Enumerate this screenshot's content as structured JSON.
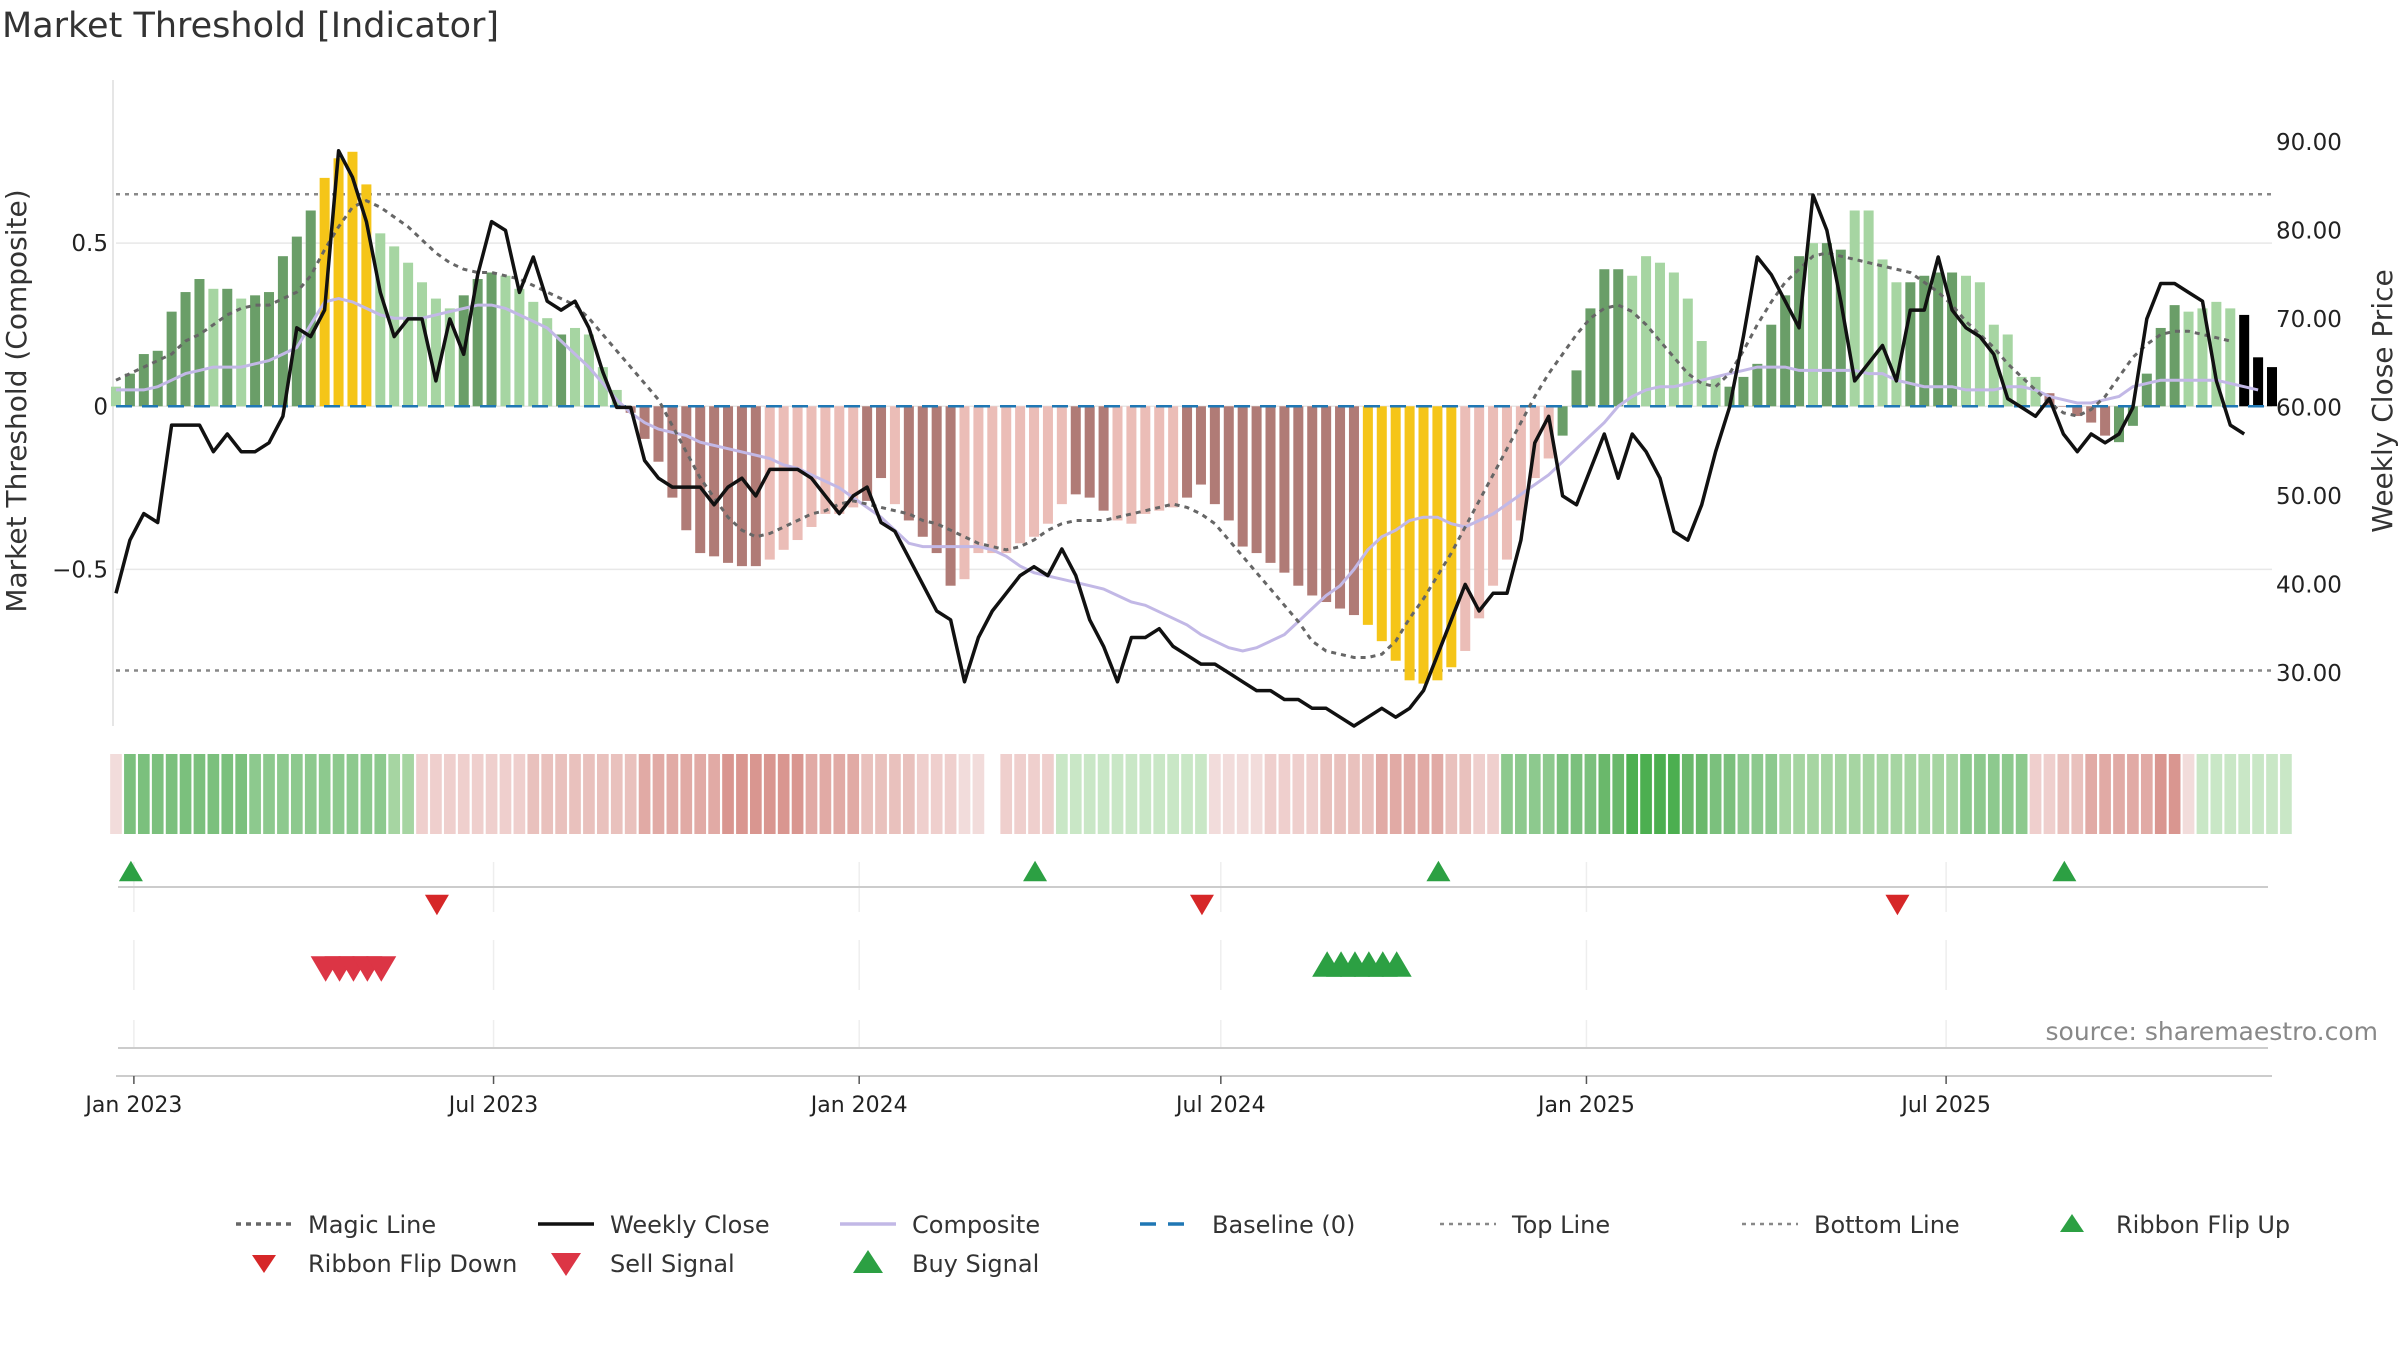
{
  "title": "Market Threshold [Indicator]",
  "source": "source: sharemaestro.com",
  "chart_data": {
    "type": "bar",
    "title": "Market Threshold [Indicator]",
    "start_date": "2022-12-23",
    "week_step_days": 7,
    "left_axis": {
      "label": "Market Threshold (Composite)",
      "ticks": [
        0.5,
        0,
        -0.5
      ],
      "tick_labels": [
        "0.5",
        "0",
        "−0.5"
      ],
      "ylim": [
        -0.98,
        1.0
      ]
    },
    "right_axis": {
      "label": "Weekly Close Price",
      "ticks": [
        30,
        40,
        50,
        60,
        70,
        80,
        90
      ],
      "tick_labels": [
        "30.00",
        "40.00",
        "50.00",
        "60.00",
        "70.00",
        "80.00",
        "90.00"
      ],
      "ylim": [
        24,
        97
      ]
    },
    "x_ticks": [
      {
        "date": "2023-01-01",
        "label": "Jan 2023"
      },
      {
        "date": "2023-07-01",
        "label": "Jul 2023"
      },
      {
        "date": "2024-01-01",
        "label": "Jan 2024"
      },
      {
        "date": "2024-07-01",
        "label": "Jul 2024"
      },
      {
        "date": "2025-01-01",
        "label": "Jan 2025"
      },
      {
        "date": "2025-07-01",
        "label": "Jul 2025"
      }
    ],
    "top_line": 0.65,
    "bottom_line": -0.81,
    "composite_histogram": [
      0.06,
      0.1,
      0.16,
      0.17,
      0.29,
      0.35,
      0.39,
      0.36,
      0.36,
      0.33,
      0.34,
      0.35,
      0.46,
      0.52,
      0.6,
      0.7,
      0.76,
      0.78,
      0.68,
      0.53,
      0.49,
      0.44,
      0.38,
      0.33,
      0.3,
      0.34,
      0.39,
      0.41,
      0.4,
      0.36,
      0.32,
      0.27,
      0.22,
      0.24,
      0.22,
      0.12,
      0.05,
      -0.02,
      -0.1,
      -0.17,
      -0.28,
      -0.38,
      -0.45,
      -0.46,
      -0.48,
      -0.49,
      -0.49,
      -0.47,
      -0.44,
      -0.41,
      -0.37,
      -0.33,
      -0.33,
      -0.31,
      -0.29,
      -0.22,
      -0.3,
      -0.35,
      -0.4,
      -0.45,
      -0.55,
      -0.53,
      -0.45,
      -0.45,
      -0.45,
      -0.42,
      -0.4,
      -0.36,
      -0.3,
      -0.27,
      -0.28,
      -0.32,
      -0.35,
      -0.36,
      -0.33,
      -0.32,
      -0.31,
      -0.28,
      -0.24,
      -0.3,
      -0.35,
      -0.43,
      -0.45,
      -0.48,
      -0.51,
      -0.55,
      -0.58,
      -0.6,
      -0.62,
      -0.64,
      -0.67,
      -0.72,
      -0.78,
      -0.84,
      -0.85,
      -0.84,
      -0.8,
      -0.75,
      -0.65,
      -0.55,
      -0.47,
      -0.35,
      -0.22,
      -0.16,
      -0.09,
      0.11,
      0.3,
      0.42,
      0.42,
      0.4,
      0.46,
      0.44,
      0.41,
      0.33,
      0.2,
      0.09,
      0.06,
      0.09,
      0.13,
      0.25,
      0.34,
      0.46,
      0.5,
      0.5,
      0.48,
      0.6,
      0.6,
      0.45,
      0.38,
      0.38,
      0.4,
      0.41,
      0.41,
      0.4,
      0.38,
      0.25,
      0.22,
      0.09,
      0.09,
      0.04,
      0,
      -0.03,
      -0.05,
      -0.09,
      -0.11,
      -0.06,
      0.1,
      0.24,
      0.31,
      0.29,
      0.3,
      0.32,
      0.3,
      0.28,
      0.15,
      0.12
    ],
    "bar_colors": [
      "#a6d5a2",
      "#6a9e68",
      "#6a9e68",
      "#6a9e68",
      "#6a9e68",
      "#6a9e68",
      "#6a9e68",
      "#a6d5a2",
      "#6a9e68",
      "#a6d5a2",
      "#6a9e68",
      "#6a9e68",
      "#6a9e68",
      "#6a9e68",
      "#6a9e68",
      "#f5c518",
      "#f5c518",
      "#f5c518",
      "#f5c518",
      "#a6d5a2",
      "#a6d5a2",
      "#a6d5a2",
      "#a6d5a2",
      "#a6d5a2",
      "#a6d5a2",
      "#6a9e68",
      "#6a9e68",
      "#6a9e68",
      "#a6d5a2",
      "#a6d5a2",
      "#a6d5a2",
      "#a6d5a2",
      "#6a9e68",
      "#a6d5a2",
      "#a6d5a2",
      "#a6d5a2",
      "#a6d5a2",
      "#b07b76",
      "#b07b76",
      "#b07b76",
      "#b07b76",
      "#b07b76",
      "#b07b76",
      "#b07b76",
      "#b07b76",
      "#b07b76",
      "#b07b76",
      "#ebbdb7",
      "#ebbdb7",
      "#ebbdb7",
      "#ebbdb7",
      "#ebbdb7",
      "#ebbdb7",
      "#ebbdb7",
      "#b07b76",
      "#b07b76",
      "#ebbdb7",
      "#b07b76",
      "#b07b76",
      "#b07b76",
      "#b07b76",
      "#ebbdb7",
      "#ebbdb7",
      "#ebbdb7",
      "#ebbdb7",
      "#ebbdb7",
      "#ebbdb7",
      "#ebbdb7",
      "#ebbdb7",
      "#b07b76",
      "#b07b76",
      "#b07b76",
      "#ebbdb7",
      "#ebbdb7",
      "#ebbdb7",
      "#ebbdb7",
      "#ebbdb7",
      "#b07b76",
      "#b07b76",
      "#b07b76",
      "#b07b76",
      "#b07b76",
      "#b07b76",
      "#b07b76",
      "#b07b76",
      "#b07b76",
      "#b07b76",
      "#b07b76",
      "#b07b76",
      "#b07b76",
      "#f5c518",
      "#f5c518",
      "#f5c518",
      "#f5c518",
      "#f5c518",
      "#f5c518",
      "#f5c518",
      "#ebbdb7",
      "#ebbdb7",
      "#ebbdb7",
      "#ebbdb7",
      "#ebbdb7",
      "#ebbdb7",
      "#ebbdb7",
      "#6a9e68",
      "#6a9e68",
      "#6a9e68",
      "#6a9e68",
      "#6a9e68",
      "#a6d5a2",
      "#a6d5a2",
      "#a6d5a2",
      "#a6d5a2",
      "#a6d5a2",
      "#a6d5a2",
      "#a6d5a2",
      "#6a9e68",
      "#6a9e68",
      "#6a9e68",
      "#6a9e68",
      "#6a9e68",
      "#6a9e68",
      "#a6d5a2",
      "#6a9e68",
      "#6a9e68",
      "#a6d5a2",
      "#a6d5a2",
      "#a6d5a2",
      "#a6d5a2",
      "#6a9e68",
      "#6a9e68",
      "#6a9e68",
      "#6a9e68",
      "#a6d5a2",
      "#a6d5a2",
      "#a6d5a2",
      "#a6d5a2",
      "#a6d5a2",
      "#a6d5a2",
      "#b07b76",
      "#b07b76",
      "#b07b76",
      "#b07b76",
      "#b07b76",
      "#6a9e68",
      "#6a9e68",
      "#6a9e68",
      "#6a9e68",
      "#6a9e68",
      "#a6d5a2",
      "#a6d5a2",
      "#a6d5a2",
      "#a6d5a2"
    ],
    "weekly_close": [
      39,
      45,
      48,
      47,
      58,
      58,
      58,
      55,
      57,
      55,
      55,
      56,
      59,
      69,
      68,
      71,
      89,
      86,
      81,
      73,
      68,
      70,
      70,
      63,
      70,
      66,
      75,
      81,
      80,
      73,
      77,
      72,
      71,
      72,
      69,
      64,
      60,
      60,
      54,
      52,
      51,
      51,
      51,
      49,
      51,
      52,
      50,
      53,
      53,
      53,
      52,
      50,
      48,
      50,
      51,
      47,
      46,
      43,
      40,
      37,
      36,
      29,
      34,
      37,
      39,
      41,
      42,
      41,
      44,
      41,
      36,
      33,
      29,
      34,
      34,
      35,
      33,
      32,
      31,
      31,
      30,
      29,
      28,
      28,
      27,
      27,
      26,
      26,
      25,
      24,
      25,
      26,
      25,
      26,
      28,
      32,
      36,
      40,
      37,
      39,
      39,
      45,
      56,
      59,
      50,
      49,
      53,
      57,
      52,
      57,
      55,
      52,
      46,
      45,
      49,
      55,
      60,
      68,
      77,
      75,
      72,
      69,
      84,
      80,
      72,
      63,
      65,
      67,
      63,
      71,
      71,
      77,
      71,
      69,
      68,
      66,
      61,
      60,
      59,
      61,
      57,
      55,
      57,
      56,
      57,
      60,
      70,
      74,
      74,
      73,
      72,
      63,
      58,
      57
    ],
    "magic_line": [
      0.08,
      0.1,
      0.12,
      0.14,
      0.16,
      0.2,
      0.22,
      0.25,
      0.28,
      0.3,
      0.31,
      0.31,
      0.33,
      0.35,
      0.4,
      0.48,
      0.55,
      0.61,
      0.63,
      0.61,
      0.58,
      0.55,
      0.51,
      0.47,
      0.44,
      0.42,
      0.41,
      0.41,
      0.4,
      0.39,
      0.37,
      0.35,
      0.33,
      0.31,
      0.27,
      0.22,
      0.17,
      0.12,
      0.07,
      0.02,
      -0.06,
      -0.14,
      -0.22,
      -0.28,
      -0.34,
      -0.38,
      -0.4,
      -0.39,
      -0.37,
      -0.35,
      -0.33,
      -0.32,
      -0.3,
      -0.29,
      -0.3,
      -0.31,
      -0.32,
      -0.33,
      -0.35,
      -0.36,
      -0.38,
      -0.4,
      -0.42,
      -0.43,
      -0.44,
      -0.43,
      -0.41,
      -0.38,
      -0.36,
      -0.35,
      -0.35,
      -0.35,
      -0.34,
      -0.33,
      -0.32,
      -0.31,
      -0.3,
      -0.31,
      -0.33,
      -0.36,
      -0.41,
      -0.46,
      -0.51,
      -0.56,
      -0.61,
      -0.66,
      -0.72,
      -0.75,
      -0.76,
      -0.77,
      -0.77,
      -0.76,
      -0.72,
      -0.65,
      -0.59,
      -0.52,
      -0.45,
      -0.37,
      -0.29,
      -0.21,
      -0.13,
      -0.05,
      0.03,
      0.1,
      0.16,
      0.22,
      0.27,
      0.3,
      0.31,
      0.29,
      0.25,
      0.2,
      0.15,
      0.1,
      0.07,
      0.06,
      0.1,
      0.17,
      0.25,
      0.32,
      0.38,
      0.42,
      0.46,
      0.47,
      0.46,
      0.45,
      0.44,
      0.43,
      0.42,
      0.41,
      0.38,
      0.35,
      0.31,
      0.26,
      0.22,
      0.18,
      0.13,
      0.09,
      0.05,
      0.01,
      -0.02,
      -0.03,
      -0.01,
      0.03,
      0.09,
      0.15,
      0.19,
      0.22,
      0.23,
      0.23,
      0.22,
      0.21,
      0.2
    ],
    "composite_line": [
      0.05,
      0.05,
      0.05,
      0.06,
      0.08,
      0.1,
      0.11,
      0.12,
      0.12,
      0.12,
      0.13,
      0.14,
      0.16,
      0.18,
      0.25,
      0.32,
      0.33,
      0.32,
      0.3,
      0.28,
      0.27,
      0.27,
      0.27,
      0.28,
      0.29,
      0.3,
      0.31,
      0.31,
      0.3,
      0.28,
      0.26,
      0.24,
      0.2,
      0.16,
      0.12,
      0.07,
      0.02,
      -0.02,
      -0.05,
      -0.07,
      -0.08,
      -0.09,
      -0.11,
      -0.12,
      -0.13,
      -0.14,
      -0.15,
      -0.16,
      -0.18,
      -0.19,
      -0.21,
      -0.23,
      -0.25,
      -0.28,
      -0.31,
      -0.34,
      -0.38,
      -0.42,
      -0.43,
      -0.43,
      -0.43,
      -0.43,
      -0.43,
      -0.44,
      -0.46,
      -0.49,
      -0.51,
      -0.52,
      -0.53,
      -0.54,
      -0.55,
      -0.56,
      -0.58,
      -0.6,
      -0.61,
      -0.63,
      -0.65,
      -0.67,
      -0.7,
      -0.72,
      -0.74,
      -0.75,
      -0.74,
      -0.72,
      -0.7,
      -0.66,
      -0.62,
      -0.58,
      -0.55,
      -0.5,
      -0.44,
      -0.4,
      -0.38,
      -0.35,
      -0.34,
      -0.34,
      -0.36,
      -0.37,
      -0.35,
      -0.33,
      -0.3,
      -0.27,
      -0.24,
      -0.21,
      -0.17,
      -0.13,
      -0.09,
      -0.05,
      0.0,
      0.03,
      0.05,
      0.06,
      0.06,
      0.07,
      0.08,
      0.09,
      0.1,
      0.11,
      0.12,
      0.12,
      0.12,
      0.11,
      0.11,
      0.11,
      0.11,
      0.11,
      0.1,
      0.1,
      0.08,
      0.07,
      0.06,
      0.06,
      0.06,
      0.05,
      0.05,
      0.05,
      0.06,
      0.06,
      0.05,
      0.03,
      0.02,
      0.01,
      0.01,
      0.02,
      0.03,
      0.06,
      0.07,
      0.08,
      0.08,
      0.08,
      0.08,
      0.08,
      0.07,
      0.06,
      0.05
    ],
    "ribbon_colors": [
      "#f2dcdb",
      "#7bc07d",
      "#7bc07d",
      "#7bc07d",
      "#7bc07d",
      "#7bc07d",
      "#7bc07d",
      "#7bc07d",
      "#7bc07d",
      "#7bc07d",
      "#8dc98e",
      "#8dc98e",
      "#8dc98e",
      "#8dc98e",
      "#8dc98e",
      "#8dc98e",
      "#8dc98e",
      "#8dc98e",
      "#8dc98e",
      "#8dc98e",
      "#a6d5a2",
      "#a6d5a2",
      "#efcfcd",
      "#efcfcd",
      "#efcfcd",
      "#efcfcd",
      "#efcfcd",
      "#efcfcd",
      "#efcfcd",
      "#efcfcd",
      "#e9c1bd",
      "#e9c1bd",
      "#e9c1bd",
      "#e9c1bd",
      "#e9c1bd",
      "#e9c1bd",
      "#e9c1bd",
      "#e9c1bd",
      "#e1aaa5",
      "#e1aaa5",
      "#e1aaa5",
      "#e1aaa5",
      "#e1aaa5",
      "#e1aaa5",
      "#d99690",
      "#d99690",
      "#d99690",
      "#d99690",
      "#d99690",
      "#d99690",
      "#e1aaa5",
      "#e1aaa5",
      "#e1aaa5",
      "#e1aaa5",
      "#e9c1bd",
      "#e9c1bd",
      "#e9c1bd",
      "#e9c1bd",
      "#efcfcd",
      "#efcfcd",
      "#efcfcd",
      "#f2dcdb",
      "#f2dcdb",
      "#ffffff",
      "#efcfcd",
      "#efcfcd",
      "#efcfcd",
      "#efcfcd",
      "#c9e7c6",
      "#c9e7c6",
      "#c9e7c6",
      "#c9e7c6",
      "#c9e7c6",
      "#c9e7c6",
      "#c9e7c6",
      "#c9e7c6",
      "#c9e7c6",
      "#c9e7c6",
      "#c9e7c6",
      "#f2dcdb",
      "#f2dcdb",
      "#f2dcdb",
      "#f2dcdb",
      "#efcfcd",
      "#efcfcd",
      "#efcfcd",
      "#efcfcd",
      "#e9c1bd",
      "#e9c1bd",
      "#e9c1bd",
      "#e9c1bd",
      "#e1aaa5",
      "#e1aaa5",
      "#e1aaa5",
      "#e1aaa5",
      "#e1aaa5",
      "#e9c1bd",
      "#e9c1bd",
      "#efcfcd",
      "#efcfcd",
      "#8dc98e",
      "#8dc98e",
      "#8dc98e",
      "#8dc98e",
      "#7bc07d",
      "#7bc07d",
      "#7bc07d",
      "#6ab86b",
      "#6ab86b",
      "#4caf50",
      "#4caf50",
      "#4caf50",
      "#4caf50",
      "#6ab86b",
      "#6ab86b",
      "#7bc07d",
      "#7bc07d",
      "#8dc98e",
      "#8dc98e",
      "#8dc98e",
      "#a6d5a2",
      "#a6d5a2",
      "#a6d5a2",
      "#a6d5a2",
      "#a6d5a2",
      "#a6d5a2",
      "#a6d5a2",
      "#a6d5a2",
      "#a6d5a2",
      "#a6d5a2",
      "#a6d5a2",
      "#a6d5a2",
      "#a6d5a2",
      "#8dc98e",
      "#8dc98e",
      "#8dc98e",
      "#8dc98e",
      "#8dc98e",
      "#efcfcd",
      "#efcfcd",
      "#e9c1bd",
      "#e9c1bd",
      "#e1aaa5",
      "#e1aaa5",
      "#e1aaa5",
      "#e1aaa5",
      "#e1aaa5",
      "#d99690",
      "#d99690",
      "#f2dcdb",
      "#c9e7c6",
      "#c9e7c6",
      "#c9e7c6",
      "#c9e7c6",
      "#c9e7c6",
      "#c9e7c6",
      "#c9e7c6"
    ],
    "ribbon_flip_up": [
      1,
      66,
      95,
      140
    ],
    "ribbon_flip_down": [
      23,
      78,
      128
    ],
    "sell_signal": [
      15,
      16,
      17,
      18,
      19
    ],
    "buy_signal": [
      87,
      88,
      89,
      90,
      91,
      92
    ],
    "colors": {
      "magic_line": "#666666",
      "weekly_close": "#111111",
      "composite": "#c2b8e6",
      "baseline": "#1f77b4",
      "guide_lines": "#888888",
      "signal_up": "#2ca043",
      "signal_down": "#d62728",
      "sell_signal": "#dc3545"
    },
    "legend": [
      {
        "label": "Magic Line",
        "marker": "dotted-line"
      },
      {
        "label": "Weekly Close",
        "marker": "solid-line"
      },
      {
        "label": "Composite",
        "marker": "solid-line-lavender"
      },
      {
        "label": "Baseline (0)",
        "marker": "dashed-line"
      },
      {
        "label": "Top Line",
        "marker": "dotted-line-light"
      },
      {
        "label": "Bottom Line",
        "marker": "dotted-line-light"
      },
      {
        "label": "Ribbon Flip Up",
        "marker": "triangle-up-green"
      },
      {
        "label": "Ribbon Flip Down",
        "marker": "triangle-down-red"
      },
      {
        "label": "Sell Signal",
        "marker": "triangle-down-red-large"
      },
      {
        "label": "Buy Signal",
        "marker": "triangle-up-green-large"
      }
    ],
    "legend_position": "bottom"
  }
}
